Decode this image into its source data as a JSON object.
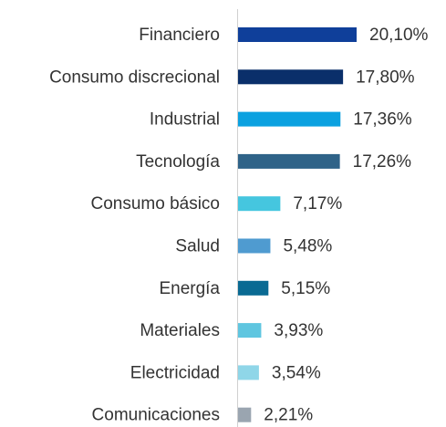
{
  "chart_data": {
    "type": "bar",
    "orientation": "horizontal",
    "categories": [
      "Financiero",
      "Consumo discrecional",
      "Industrial",
      "Tecnología",
      "Consumo básico",
      "Salud",
      "Energía",
      "Materiales",
      "Electricidad",
      "Comunicaciones"
    ],
    "values": [
      20.1,
      17.8,
      17.36,
      17.26,
      7.17,
      5.48,
      5.15,
      3.93,
      3.54,
      2.21
    ],
    "value_labels": [
      "20,10%",
      "17,80%",
      "17,36%",
      "17,26%",
      "7,17%",
      "5,48%",
      "5,15%",
      "3,93%",
      "3,54%",
      "2,21%"
    ],
    "colors": [
      "#0f3f9a",
      "#0a2f6a",
      "#0ba1e0",
      "#2f6388",
      "#45c6df",
      "#4f9bd0",
      "#0a6a93",
      "#5fc6e0",
      "#8fd6e8",
      "#9aa5b0"
    ]
  }
}
